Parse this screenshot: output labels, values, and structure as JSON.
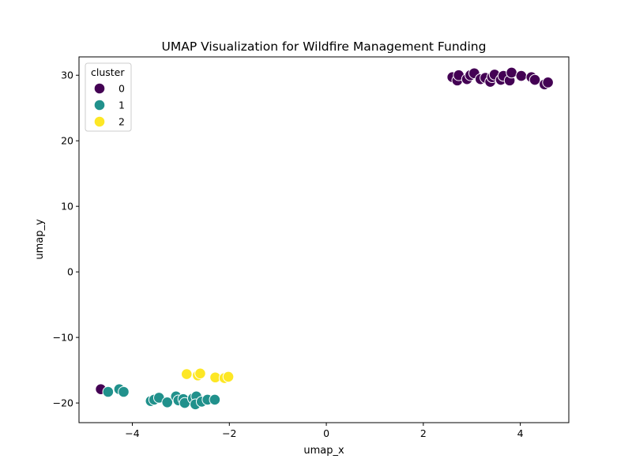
{
  "chart_data": {
    "type": "scatter",
    "title": "UMAP Visualization for Wildfire Management Funding",
    "xlabel": "umap_x",
    "ylabel": "umap_y",
    "xlim": [
      -5.1,
      5.0
    ],
    "ylim": [
      -23.0,
      32.8
    ],
    "xticks": [
      -4,
      -2,
      0,
      2,
      4
    ],
    "yticks": [
      -20,
      -10,
      0,
      10,
      20,
      30
    ],
    "xtick_labels": [
      "−4",
      "−2",
      "0",
      "2",
      "4"
    ],
    "ytick_labels": [
      "−20",
      "−10",
      "0",
      "10",
      "20",
      "30"
    ],
    "grid": false,
    "legend": {
      "title": "cluster",
      "placement": "upper-left",
      "entries": [
        "0",
        "1",
        "2"
      ]
    },
    "series": [
      {
        "name": "0",
        "color": "#440154",
        "points": [
          [
            -4.65,
            -17.9
          ],
          [
            2.6,
            29.7
          ],
          [
            2.7,
            29.2
          ],
          [
            2.73,
            30.0
          ],
          [
            2.9,
            29.4
          ],
          [
            2.97,
            30.0
          ],
          [
            3.05,
            30.3
          ],
          [
            3.18,
            29.4
          ],
          [
            3.28,
            29.6
          ],
          [
            3.38,
            29.0
          ],
          [
            3.42,
            29.7
          ],
          [
            3.47,
            30.1
          ],
          [
            3.6,
            29.3
          ],
          [
            3.65,
            29.9
          ],
          [
            3.78,
            29.2
          ],
          [
            3.82,
            30.4
          ],
          [
            4.02,
            29.9
          ],
          [
            4.23,
            29.7
          ],
          [
            4.3,
            29.3
          ],
          [
            4.5,
            28.6
          ],
          [
            4.57,
            28.9
          ]
        ]
      },
      {
        "name": "1",
        "color": "#21918c",
        "points": [
          [
            -4.5,
            -18.3
          ],
          [
            -4.27,
            -17.9
          ],
          [
            -4.18,
            -18.3
          ],
          [
            -3.62,
            -19.7
          ],
          [
            -3.55,
            -19.5
          ],
          [
            -3.45,
            -19.2
          ],
          [
            -3.28,
            -19.9
          ],
          [
            -3.1,
            -19.0
          ],
          [
            -3.05,
            -19.6
          ],
          [
            -2.95,
            -19.4
          ],
          [
            -2.92,
            -20.0
          ],
          [
            -2.75,
            -19.3
          ],
          [
            -2.68,
            -19.0
          ],
          [
            -2.7,
            -20.2
          ],
          [
            -2.57,
            -19.8
          ],
          [
            -2.45,
            -19.5
          ],
          [
            -2.3,
            -19.5
          ]
        ]
      },
      {
        "name": "2",
        "color": "#fde725",
        "points": [
          [
            -2.88,
            -15.6
          ],
          [
            -2.65,
            -15.8
          ],
          [
            -2.6,
            -15.5
          ],
          [
            -2.29,
            -16.1
          ],
          [
            -2.1,
            -16.2
          ],
          [
            -2.02,
            -16.0
          ]
        ]
      }
    ]
  }
}
